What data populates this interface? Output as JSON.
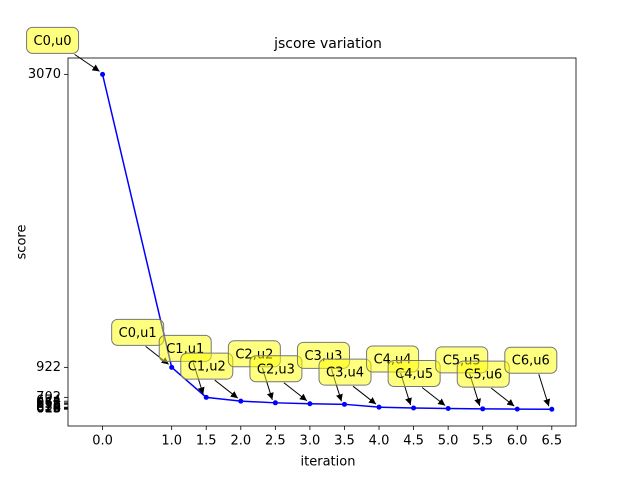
{
  "chart_data": {
    "type": "line",
    "title": "jscore variation",
    "x_label": "iteration",
    "y_label": "score",
    "x": [
      0,
      1,
      1.5,
      2,
      2.5,
      3,
      3.5,
      4,
      4.5,
      5,
      5.5,
      6,
      6.5
    ],
    "values": [
      3070,
      922,
      702,
      674,
      662,
      655,
      651,
      630,
      624,
      620,
      618,
      616,
      615
    ],
    "annotations": [
      "C0,u0",
      "C0,u1",
      "C1,u1",
      "C1,u2",
      "C2,u2",
      "C2,u3",
      "C3,u3",
      "C3,u4",
      "C4,u4",
      "C4,u5",
      "C5,u5",
      "C5,u6",
      "C6,u6"
    ],
    "color": "#0000ff",
    "xlim": [
      -0.5,
      6.85
    ],
    "ylim": [
      492,
      3190
    ],
    "xticks": [
      {
        "value": 0,
        "label": "0.0"
      },
      {
        "value": 1,
        "label": "1.0"
      },
      1.5,
      {
        "value": 2,
        "label": "2.0"
      },
      2.5,
      {
        "value": 3,
        "label": "3.0"
      },
      3.5,
      {
        "value": 4,
        "label": "4.0"
      },
      4.5,
      {
        "value": 5,
        "label": "5.0"
      },
      5.5,
      {
        "value": 6,
        "label": "6.0"
      },
      6.5
    ],
    "yticks": [
      3070,
      922,
      702,
      674,
      662,
      655,
      651,
      630,
      624,
      620,
      618,
      616,
      615
    ]
  }
}
